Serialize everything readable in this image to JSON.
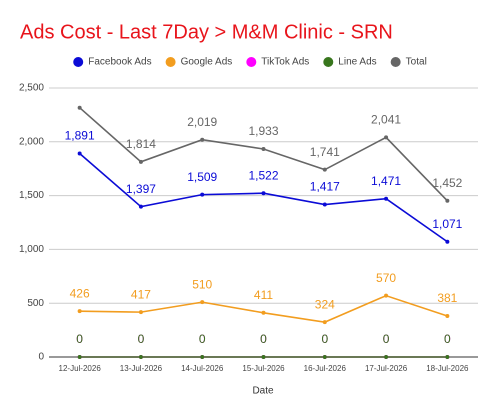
{
  "chart_data": {
    "type": "line",
    "title": "Ads Cost - Last 7Day > M&M Clinic - SRN",
    "x_label": "Date",
    "categories": [
      "12-Jul-2026",
      "13-Jul-2026",
      "14-Jul-2026",
      "15-Jul-2026",
      "16-Jul-2026",
      "17-Jul-2026",
      "18-Jul-2026"
    ],
    "series": [
      {
        "name": "Facebook Ads",
        "color": "#0b0bd6",
        "values": [
          1891,
          1397,
          1509,
          1522,
          1417,
          1471,
          1071
        ],
        "value_labels": [
          "1,891",
          "1,397",
          "1,509",
          "1,522",
          "1,417",
          "1,471",
          "1,071"
        ]
      },
      {
        "name": "Google Ads",
        "color": "#f29d1f",
        "values": [
          426,
          417,
          510,
          411,
          324,
          570,
          381
        ]
      },
      {
        "name": "TikTok Ads",
        "color": "#ff00ff",
        "values": [
          0,
          0,
          0,
          0,
          0,
          0,
          0
        ]
      },
      {
        "name": "Line Ads",
        "color": "#38761d",
        "values": [
          0,
          0,
          0,
          0,
          0,
          0,
          0
        ]
      },
      {
        "name": "Total",
        "color": "#666666",
        "values": [
          2317,
          1814,
          2019,
          1933,
          1741,
          2041,
          1452
        ],
        "value_labels": [
          null,
          "1,814",
          "2,019",
          "1,933",
          "1,741",
          "2,041",
          "1,452"
        ]
      }
    ],
    "ylim": [
      0,
      2500
    ],
    "yticks": [
      0,
      500,
      {
        "value": 1000,
        "label": "1,000"
      },
      {
        "value": 1500,
        "label": "1,500"
      },
      {
        "value": 2000,
        "label": "2,000"
      },
      {
        "value": 2500,
        "label": "2,500"
      }
    ],
    "grid": true,
    "legend": "top"
  }
}
